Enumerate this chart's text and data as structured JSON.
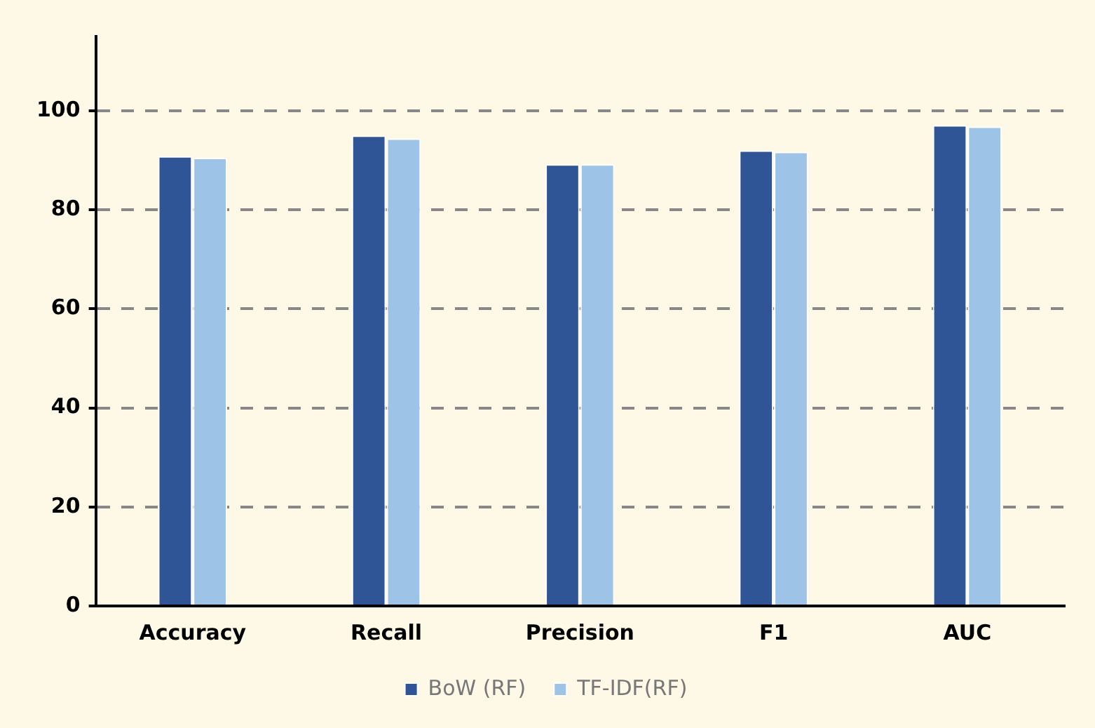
{
  "chart_data": {
    "type": "bar",
    "categories": [
      "Accuracy",
      "Recall",
      "Precision",
      "F1",
      "AUC"
    ],
    "series": [
      {
        "name": "BoW (RF)",
        "color": "#2f5597",
        "values": [
          90.8,
          95.0,
          89.2,
          92.0,
          97.1
        ]
      },
      {
        "name": "TF-IDF(RF)",
        "color": "#9dc3e6",
        "values": [
          90.5,
          94.4,
          89.2,
          91.7,
          96.8
        ]
      }
    ],
    "ylim": [
      0,
      115
    ],
    "yticks": [
      0,
      20,
      40,
      60,
      80,
      100
    ],
    "grid": "y",
    "legend": "bottom"
  }
}
